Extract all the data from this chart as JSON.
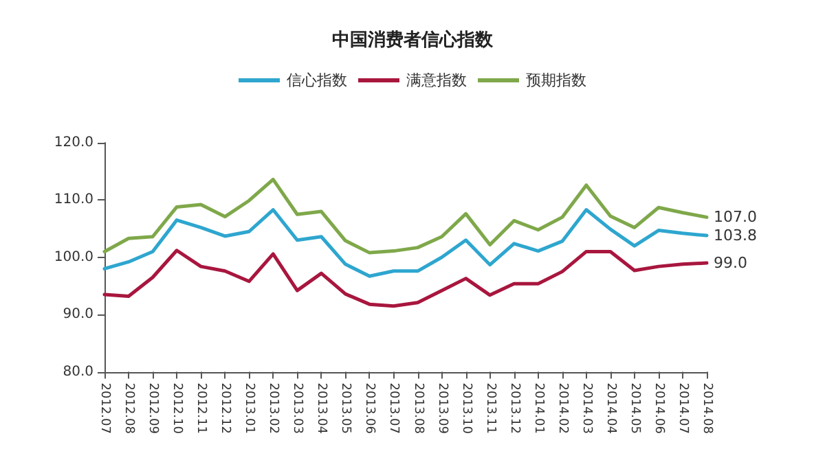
{
  "chart_data": {
    "type": "line",
    "title": "中国消费者信心指数",
    "categories": [
      "2012.07",
      "2012.08",
      "2012.09",
      "2012.10",
      "2012.11",
      "2012.12",
      "2013.01",
      "2013.02",
      "2013.03",
      "2013.04",
      "2013.05",
      "2013.06",
      "2013.07",
      "2013.08",
      "2013.09",
      "2013.10",
      "2013.11",
      "2013.12",
      "2014.01",
      "2014.02",
      "2014.03",
      "2014.04",
      "2014.05",
      "2014.06",
      "2014.07",
      "2014.08"
    ],
    "series": [
      {
        "name": "信心指数",
        "color": "#2ea6cf",
        "values": [
          98.0,
          99.2,
          101.0,
          106.5,
          105.2,
          103.7,
          104.5,
          108.3,
          103.0,
          103.6,
          98.8,
          96.7,
          97.6,
          97.6,
          100.0,
          103.0,
          98.7,
          102.4,
          101.1,
          102.8,
          108.3,
          104.9,
          102.0,
          104.7,
          104.2,
          103.8
        ],
        "value_labels": [
          null,
          null,
          null,
          null,
          null,
          null,
          null,
          null,
          null,
          null,
          null,
          null,
          null,
          null,
          null,
          null,
          null,
          null,
          null,
          null,
          null,
          null,
          null,
          null,
          null,
          "103.8"
        ]
      },
      {
        "name": "满意指数",
        "color": "#a8163e",
        "values": [
          93.5,
          93.2,
          96.5,
          101.2,
          98.4,
          97.6,
          95.8,
          100.6,
          94.2,
          97.2,
          93.6,
          91.8,
          91.5,
          92.1,
          94.2,
          96.3,
          93.4,
          95.4,
          95.4,
          97.5,
          101.0,
          101.0,
          97.7,
          98.4,
          98.8,
          99.0
        ],
        "value_labels": [
          null,
          null,
          null,
          null,
          null,
          null,
          null,
          null,
          null,
          null,
          null,
          null,
          null,
          null,
          null,
          null,
          null,
          null,
          null,
          null,
          null,
          null,
          null,
          null,
          null,
          "99.0"
        ]
      },
      {
        "name": "预期指数",
        "color": "#7fa84a",
        "values": [
          101.0,
          103.3,
          103.6,
          108.8,
          109.2,
          107.1,
          109.9,
          113.6,
          107.5,
          108.0,
          102.9,
          100.8,
          101.1,
          101.7,
          103.6,
          107.6,
          102.2,
          106.4,
          104.8,
          107.0,
          112.6,
          107.2,
          105.2,
          108.7,
          107.8,
          107.0
        ],
        "value_labels": [
          null,
          null,
          null,
          null,
          null,
          null,
          null,
          null,
          null,
          null,
          null,
          null,
          null,
          null,
          null,
          null,
          null,
          null,
          null,
          null,
          null,
          null,
          null,
          null,
          null,
          "107.0"
        ]
      }
    ],
    "ylim": [
      80,
      120
    ],
    "yticks": [
      {
        "value": 80,
        "label": "80.0"
      },
      {
        "value": 90,
        "label": "90.0"
      },
      {
        "value": 100,
        "label": "100.0"
      },
      {
        "value": 110,
        "label": "110.0"
      },
      {
        "value": 120,
        "label": "120.0"
      }
    ],
    "grid": false,
    "legend": "top",
    "marker": "none",
    "line_style": "solid"
  }
}
